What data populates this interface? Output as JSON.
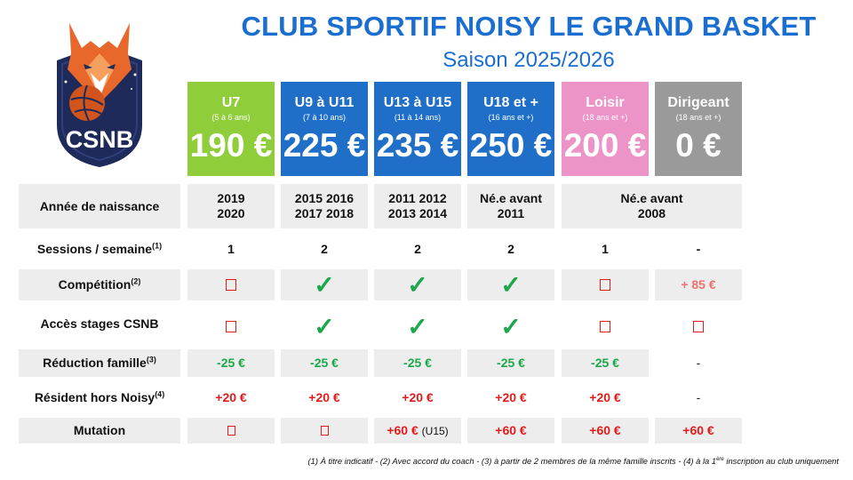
{
  "title": "CLUB SPORTIF NOISY LE GRAND BASKET",
  "subtitle": "Saison 2025/2026",
  "logo": {
    "text": "CSNB"
  },
  "colors": {
    "accent": "#1a6ed0",
    "u7": "#8fce3a",
    "u9": "#1f6fc9",
    "u13": "#1f6fc9",
    "u18": "#1f6fc9",
    "loisir": "#ec94c8",
    "dirigeant": "#9a9a9a",
    "green": "#1aa84a",
    "red": "#e31b1b"
  },
  "categories": [
    {
      "name": "U7",
      "age": "(5 à 6 ans)",
      "price": "190 €"
    },
    {
      "name": "U9 à U11",
      "age": "(7 à 10 ans)",
      "price": "225 €"
    },
    {
      "name": "U13 à U15",
      "age": "(11 à 14 ans)",
      "price": "235 €"
    },
    {
      "name": "U18 et +",
      "age": "(16 ans et +)",
      "price": "250 €"
    },
    {
      "name": "Loisir",
      "age": "(18 ans et +)",
      "price": "200 €"
    },
    {
      "name": "Dirigeant",
      "age": "(18 ans et +)",
      "price": "0 €"
    }
  ],
  "rows": {
    "naissance": {
      "label": "Année de naissance",
      "u7": [
        "2019",
        "2020"
      ],
      "u9": [
        "2015 2016",
        "2017 2018"
      ],
      "u13": [
        "2011 2012",
        "2013 2014"
      ],
      "u18": [
        "Né.e avant",
        "2011"
      ],
      "loisir_dirigeant": [
        "Né.e avant",
        "2008"
      ]
    },
    "sessions": {
      "label": "Sessions / semaine",
      "sup": "(1)",
      "values": [
        "1",
        "2",
        "2",
        "2",
        "1",
        "-"
      ]
    },
    "competition": {
      "label": "Compétition",
      "sup": "(2)",
      "values": [
        "no",
        "yes",
        "yes",
        "yes",
        "no",
        "+ 85 €"
      ]
    },
    "stages": {
      "label": "Accès stages CSNB",
      "values": [
        "no",
        "yes",
        "yes",
        "yes",
        "no",
        "no"
      ]
    },
    "reduction": {
      "label": "Réduction famille",
      "sup": "(3)",
      "values": [
        "-25 €",
        "-25 €",
        "-25 €",
        "-25 €",
        "-25 €",
        "-"
      ]
    },
    "resident": {
      "label": "Résident hors Noisy",
      "sup": "(4)",
      "values": [
        "+20 €",
        "+20 €",
        "+20 €",
        "+20 €",
        "+20 €",
        "-"
      ]
    },
    "mutation": {
      "label": "Mutation",
      "values": [
        "no",
        "no",
        "+60 €",
        "+60 €",
        "+60 €",
        "+60 €"
      ],
      "note_u13": "(U15)"
    }
  },
  "check_glyph": "✓",
  "footnote": {
    "part1": "(1) À titre indicatif - (2) Avec accord du coach - (3) à partir de 2 membres de la même famille inscrits - (4) à la 1",
    "sup": "ère",
    "part2": " inscription au club uniquement"
  }
}
